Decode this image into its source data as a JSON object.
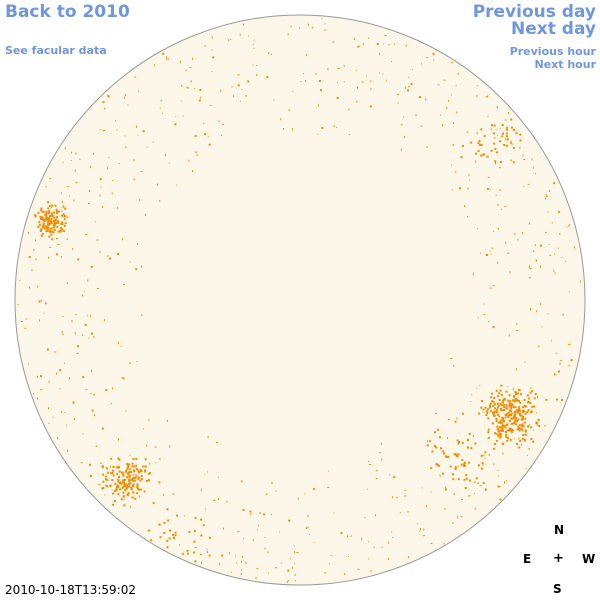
{
  "nav": {
    "back": "Back to 2010",
    "facular": "See facular data",
    "previous_day": "Previous day",
    "next_day": "Next day",
    "previous_hour": "Previous hour",
    "next_hour": "Next hour"
  },
  "compass": {
    "north": "N",
    "south": "S",
    "east": "E",
    "west": "W",
    "center": "+"
  },
  "timestamp": "2010-10-18T13:59:02",
  "colors": {
    "link": "#6f97dd",
    "disk_fill": "#fdf7ea",
    "disk_outline": "#9a9a9a",
    "feature": "#f08c00"
  }
}
